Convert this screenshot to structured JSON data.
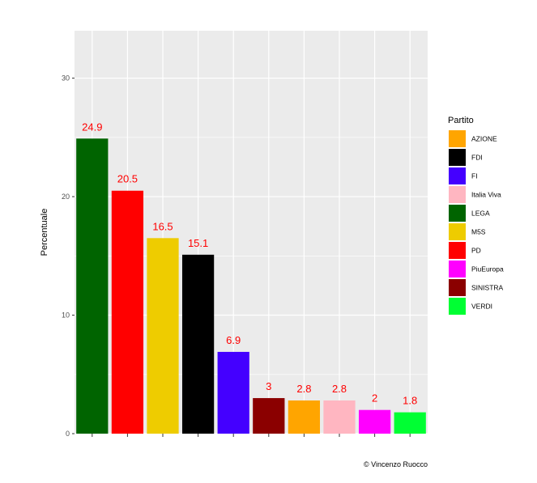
{
  "chart_data": {
    "type": "bar",
    "title": "",
    "xlabel": "",
    "ylabel": "Percentuale",
    "ylim": [
      0,
      34
    ],
    "yticks": [
      0,
      10,
      20,
      30
    ],
    "grid": true,
    "legend_position": "right",
    "legend_title": "Partito",
    "categories": [
      "LEGA",
      "PD",
      "M5S",
      "FDI",
      "FI",
      "SINISTRA",
      "AZIONE",
      "Italia Viva",
      "PiuEuropa",
      "VERDI"
    ],
    "values": [
      24.9,
      20.5,
      16.5,
      15.1,
      6.9,
      3,
      2.8,
      2.8,
      2,
      1.8
    ],
    "value_labels": [
      "24.9",
      "20.5",
      "16.5",
      "15.1",
      "6.9",
      "3",
      "2.8",
      "2.8",
      "2",
      "1.8"
    ],
    "bar_colors": [
      "#006400",
      "#ff0000",
      "#eecc00",
      "#000000",
      "#4400ff",
      "#8b0000",
      "#ffa500",
      "#ffb6c1",
      "#ff00ff",
      "#00ff33"
    ],
    "legend_items": [
      {
        "label": "AZIONE",
        "color": "#ffa500"
      },
      {
        "label": "FDI",
        "color": "#000000"
      },
      {
        "label": "FI",
        "color": "#4400ff"
      },
      {
        "label": "Italia Viva",
        "color": "#ffb6c1"
      },
      {
        "label": "LEGA",
        "color": "#006400"
      },
      {
        "label": "M5S",
        "color": "#eecc00"
      },
      {
        "label": "PD",
        "color": "#ff0000"
      },
      {
        "label": "PiuEuropa",
        "color": "#ff00ff"
      },
      {
        "label": "SINISTRA",
        "color": "#8b0000"
      },
      {
        "label": "VERDI",
        "color": "#00ff33"
      }
    ],
    "caption": "© Vincenzo Ruocco",
    "colors": {
      "panel_background": "#ebebeb",
      "gridline": "#ffffff",
      "value_label": "#ff0000",
      "axis_text": "#4d4d4d"
    }
  }
}
